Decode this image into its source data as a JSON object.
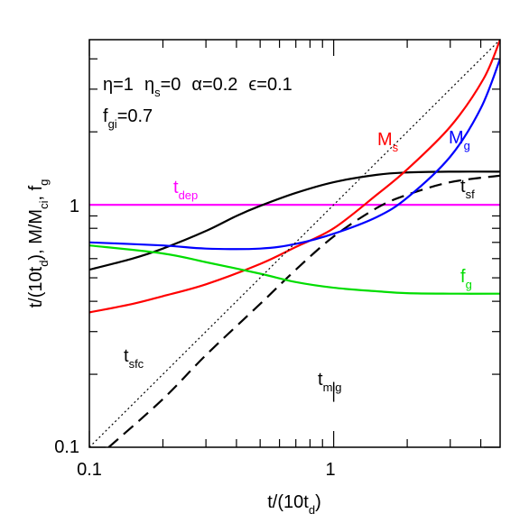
{
  "chart_data": {
    "type": "line",
    "xscale": "log",
    "yscale": "log",
    "xlim": [
      0.1,
      4.8
    ],
    "ylim": [
      0.1,
      4.8
    ],
    "xlabel": {
      "main": "t/(10t",
      "sub": "d",
      "end": ")"
    },
    "ylabel": {
      "p1": "t/(10t",
      "s1": "d",
      "p2": "), M/M",
      "s2": "ci",
      "p3": ", f",
      "s3": "g"
    },
    "x_ticks": [
      {
        "v": 0.1,
        "label": "0.1"
      },
      {
        "v": 1,
        "label": "1"
      }
    ],
    "y_ticks": [
      {
        "v": 0.1,
        "label": "0.1"
      },
      {
        "v": 1,
        "label": "1"
      }
    ],
    "params_line1": "η=1  η = 0  α=0.2  ϵ=0.1",
    "params": {
      "eta": "η=1",
      "eta_s_main": "η",
      "eta_s_sub": "s",
      "eta_s_val": "=0",
      "alpha": "α=0.2",
      "epsilon": "ϵ=0.1",
      "fgi_main": "f",
      "fgi_sub": "gi",
      "fgi_val": "=0.7"
    },
    "series": [
      {
        "key": "tdep",
        "color": "#ff00ff",
        "dash": "",
        "label_main": "t",
        "label_sub": "dep",
        "x": [
          0.1,
          4.8
        ],
        "y": [
          1.0,
          1.0
        ]
      },
      {
        "key": "tsf",
        "color": "#000000",
        "dash": "",
        "label_main": "t",
        "label_sub": "sf",
        "x": [
          0.1,
          0.15,
          0.2,
          0.3,
          0.4,
          0.5,
          0.7,
          1.0,
          1.5,
          2.0,
          3.0,
          4.8
        ],
        "y": [
          0.54,
          0.6,
          0.66,
          0.78,
          0.9,
          0.99,
          1.12,
          1.24,
          1.33,
          1.36,
          1.37,
          1.37
        ]
      },
      {
        "key": "tsf_dashed",
        "color": "#000000",
        "dash": "14,8",
        "x": [
          0.12,
          0.2,
          0.3,
          0.5,
          0.7,
          1.0,
          1.5,
          2.0,
          3.0,
          4.8
        ],
        "y": [
          0.1,
          0.158,
          0.24,
          0.39,
          0.54,
          0.74,
          0.97,
          1.1,
          1.24,
          1.32
        ]
      },
      {
        "key": "Ms",
        "color": "#ff0000",
        "dash": "",
        "label_main": "M",
        "label_sub": "s",
        "x": [
          0.1,
          0.15,
          0.2,
          0.3,
          0.5,
          0.7,
          1.0,
          1.5,
          2.0,
          3.0,
          4.1,
          4.8
        ],
        "y": [
          0.36,
          0.39,
          0.42,
          0.47,
          0.57,
          0.67,
          0.8,
          1.1,
          1.4,
          2.1,
          3.3,
          4.8
        ]
      },
      {
        "key": "Mg",
        "color": "#0000ff",
        "dash": "",
        "label_main": "M",
        "label_sub": "g",
        "x": [
          0.1,
          0.2,
          0.3,
          0.5,
          0.7,
          1.0,
          1.5,
          2.0,
          3.0,
          4.0,
          4.8
        ],
        "y": [
          0.7,
          0.68,
          0.66,
          0.66,
          0.69,
          0.76,
          0.89,
          1.07,
          1.58,
          2.5,
          4.0
        ]
      },
      {
        "key": "fg",
        "color": "#00dd00",
        "dash": "",
        "label_main": "f",
        "label_sub": "g",
        "x": [
          0.1,
          0.2,
          0.3,
          0.5,
          0.7,
          1.0,
          1.5,
          2.0,
          3.0,
          4.8
        ],
        "y": [
          0.68,
          0.63,
          0.58,
          0.52,
          0.48,
          0.455,
          0.44,
          0.432,
          0.43,
          0.43
        ]
      },
      {
        "key": "tsfc",
        "color": "#000000",
        "dash": "2,3",
        "width": 1.2,
        "label_main": "t",
        "label_sub": "sfc",
        "x": [
          0.1,
          4.8
        ],
        "y": [
          0.1,
          4.8
        ]
      }
    ],
    "tmig": {
      "label_main": "t",
      "label_sub": "mig",
      "x": 1.0,
      "y_from": 0.154,
      "y_to": 0.186
    }
  }
}
